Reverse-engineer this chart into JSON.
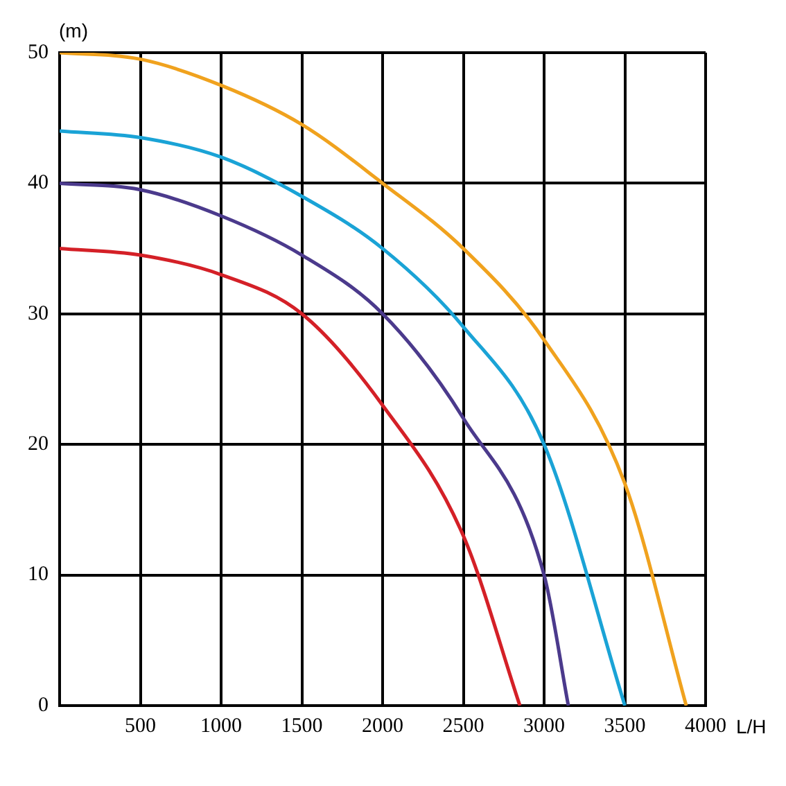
{
  "chart_data": {
    "type": "line",
    "xlabel": "L/H",
    "ylabel": "(m)",
    "xlim": [
      0,
      4000
    ],
    "ylim": [
      0,
      50
    ],
    "xticks": [
      {
        "value": 0,
        "label": null
      },
      500,
      1000,
      1500,
      2000,
      2500,
      3000,
      3500,
      4000
    ],
    "yticks": [
      0,
      10,
      20,
      30,
      40,
      50
    ],
    "grid": true,
    "marker": "none",
    "line_style": "solid",
    "legend": false,
    "series": [
      {
        "color": "#d42027",
        "x": [
          0,
          500,
          1000,
          1500,
          2000,
          2500,
          2850
        ],
        "values": [
          35,
          34.5,
          33,
          30,
          23,
          13,
          0
        ]
      },
      {
        "color": "#4b3a8c",
        "x": [
          0,
          500,
          1000,
          1500,
          2000,
          2500,
          3000,
          3150
        ],
        "values": [
          40,
          39.5,
          37.5,
          34.5,
          30,
          22,
          10,
          0
        ]
      },
      {
        "color": "#1aa3d6",
        "x": [
          0,
          500,
          1000,
          1500,
          2000,
          2500,
          3000,
          3500
        ],
        "values": [
          44,
          43.5,
          42,
          39,
          35,
          29,
          20,
          0
        ]
      },
      {
        "color": "#f0a21e",
        "x": [
          0,
          500,
          1000,
          1500,
          2000,
          2500,
          3000,
          3500,
          3880
        ],
        "values": [
          50,
          49.5,
          47.5,
          44.5,
          40,
          35,
          28,
          17,
          0
        ]
      }
    ]
  }
}
